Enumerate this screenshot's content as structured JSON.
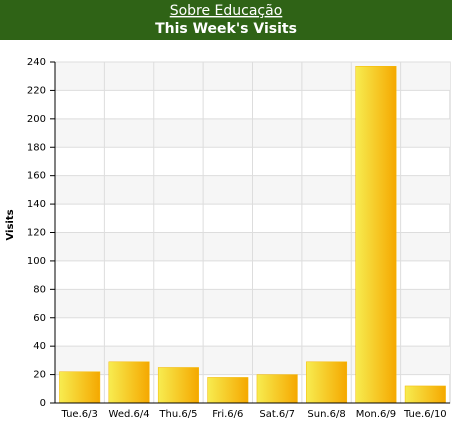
{
  "chart_data": {
    "type": "bar",
    "header_link": "Sobre Educação",
    "title": "This Week's Visits",
    "y_label": "Visits",
    "categories": [
      "Tue.6/3",
      "Wed.6/4",
      "Thu.6/5",
      "Fri.6/6",
      "Sat.6/7",
      "Sun.6/8",
      "Mon.6/9",
      "Tue.6/10"
    ],
    "values": [
      22,
      29,
      25,
      18,
      20,
      29,
      237,
      12
    ],
    "color": "#f5b800",
    "ylim": [
      0,
      240
    ],
    "yticks": [
      0,
      20,
      40,
      60,
      80,
      100,
      120,
      140,
      160,
      180,
      200,
      220,
      240
    ],
    "grid": true
  }
}
